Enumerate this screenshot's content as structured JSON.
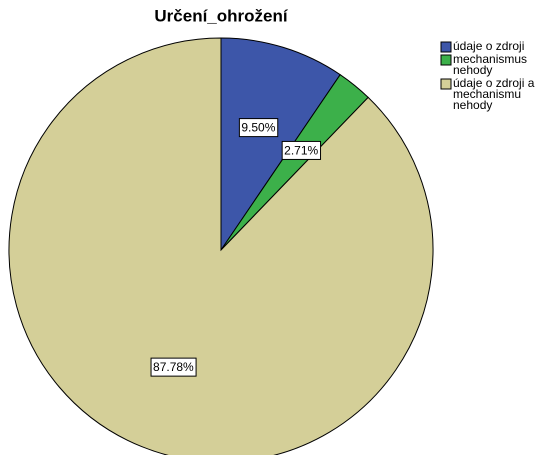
{
  "chart_data": {
    "type": "pie",
    "title": "Určení_ohrožení",
    "categories": [
      "údaje o zdroji",
      "mechanismus nehody",
      "údaje o zdroji a mechanismu nehody"
    ],
    "values": [
      9.5,
      2.71,
      87.78
    ],
    "value_labels": [
      "9.50%",
      "2.71%",
      "87.78%"
    ],
    "colors": [
      "#3d56a9",
      "#3cb04a",
      "#d4cf98"
    ],
    "legend": "top-right"
  }
}
